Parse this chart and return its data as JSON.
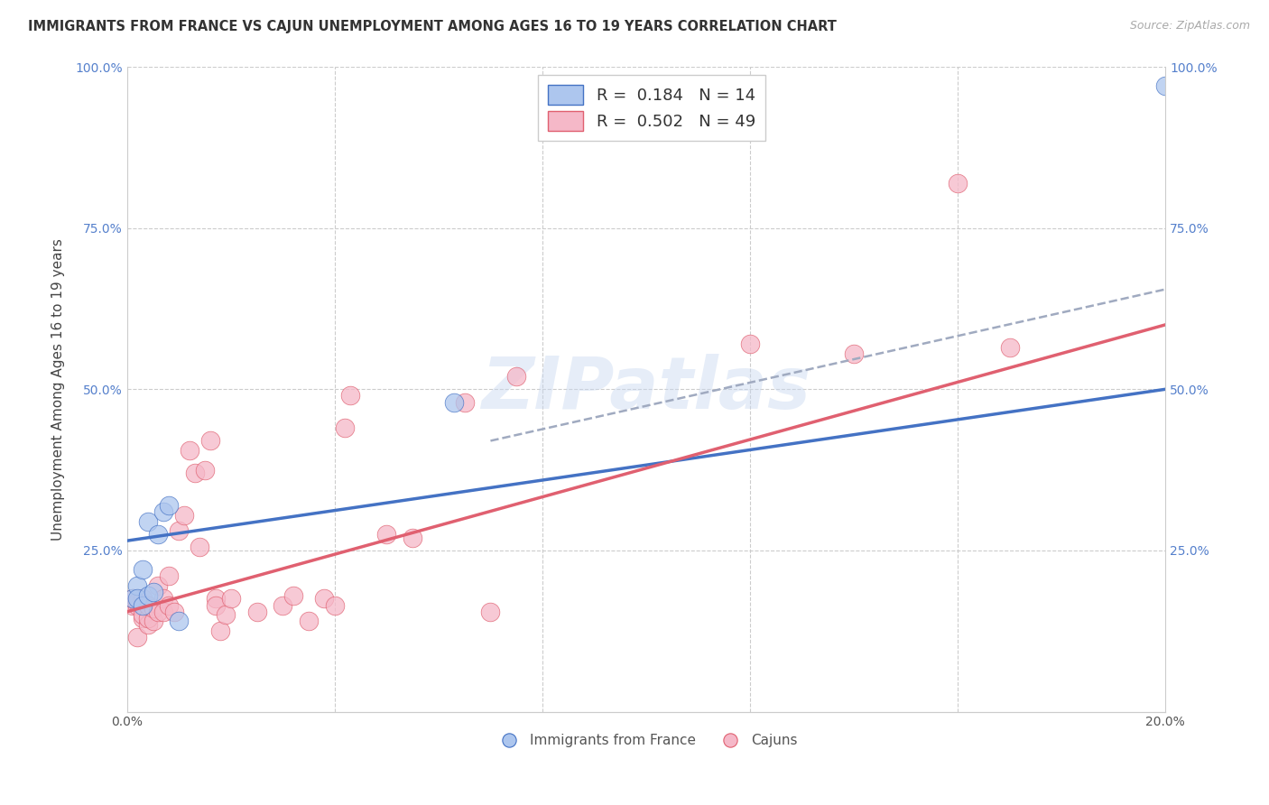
{
  "title": "IMMIGRANTS FROM FRANCE VS CAJUN UNEMPLOYMENT AMONG AGES 16 TO 19 YEARS CORRELATION CHART",
  "source": "Source: ZipAtlas.com",
  "ylabel": "Unemployment Among Ages 16 to 19 years",
  "xmin": 0.0,
  "xmax": 0.2,
  "ymin": 0.0,
  "ymax": 1.0,
  "legend_r_blue": "0.184",
  "legend_n_blue": "14",
  "legend_r_pink": "0.502",
  "legend_n_pink": "49",
  "legend_label_blue": "Immigrants from France",
  "legend_label_pink": "Cajuns",
  "blue_fill_color": "#adc6ee",
  "pink_fill_color": "#f5b8c8",
  "trend_blue_color": "#4472c4",
  "trend_pink_color": "#e06070",
  "trend_dashed_color": "#a0aac0",
  "watermark_text": "ZIPatlas",
  "trend_blue_x0": 0.0,
  "trend_blue_y0": 0.265,
  "trend_blue_x1": 0.2,
  "trend_blue_y1": 0.5,
  "trend_pink_x0": 0.0,
  "trend_pink_y0": 0.155,
  "trend_pink_x1": 0.2,
  "trend_pink_y1": 0.6,
  "trend_dash_x0": 0.07,
  "trend_dash_y0": 0.42,
  "trend_dash_x1": 0.2,
  "trend_dash_y1": 0.655,
  "blue_scatter_x": [
    0.001,
    0.002,
    0.002,
    0.003,
    0.003,
    0.004,
    0.004,
    0.005,
    0.006,
    0.007,
    0.008,
    0.01,
    0.063,
    0.2
  ],
  "blue_scatter_y": [
    0.175,
    0.195,
    0.175,
    0.165,
    0.22,
    0.18,
    0.295,
    0.185,
    0.275,
    0.31,
    0.32,
    0.14,
    0.48,
    0.97
  ],
  "pink_scatter_x": [
    0.001,
    0.001,
    0.002,
    0.002,
    0.002,
    0.003,
    0.003,
    0.003,
    0.004,
    0.004,
    0.004,
    0.005,
    0.005,
    0.006,
    0.006,
    0.007,
    0.007,
    0.008,
    0.008,
    0.009,
    0.01,
    0.011,
    0.012,
    0.013,
    0.014,
    0.015,
    0.016,
    0.017,
    0.017,
    0.018,
    0.019,
    0.02,
    0.025,
    0.03,
    0.032,
    0.035,
    0.038,
    0.04,
    0.042,
    0.043,
    0.05,
    0.055,
    0.065,
    0.07,
    0.075,
    0.12,
    0.14,
    0.16,
    0.17
  ],
  "pink_scatter_y": [
    0.165,
    0.175,
    0.165,
    0.17,
    0.115,
    0.175,
    0.145,
    0.15,
    0.135,
    0.145,
    0.165,
    0.14,
    0.16,
    0.195,
    0.155,
    0.175,
    0.155,
    0.21,
    0.165,
    0.155,
    0.28,
    0.305,
    0.405,
    0.37,
    0.255,
    0.375,
    0.42,
    0.175,
    0.165,
    0.125,
    0.15,
    0.175,
    0.155,
    0.165,
    0.18,
    0.14,
    0.175,
    0.165,
    0.44,
    0.49,
    0.275,
    0.27,
    0.48,
    0.155,
    0.52,
    0.57,
    0.555,
    0.82,
    0.565
  ]
}
